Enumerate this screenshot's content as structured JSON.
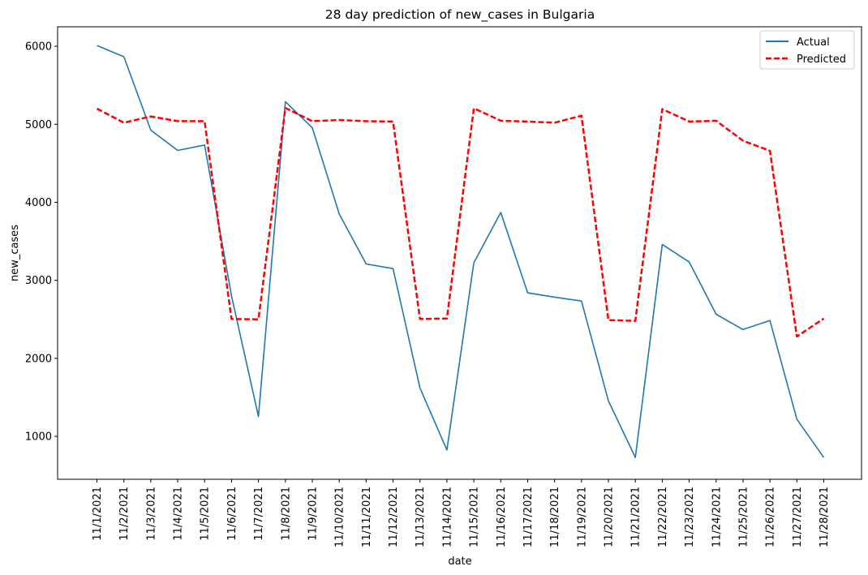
{
  "chart_data": {
    "type": "line",
    "title": "28 day prediction of new_cases in Bulgaria",
    "xlabel": "date",
    "ylabel": "new_cases",
    "ylim": [
      450,
      6250
    ],
    "yticks": [
      1000,
      2000,
      3000,
      4000,
      5000,
      6000
    ],
    "grid": false,
    "legend_position": "top-right",
    "categories": [
      "11/1/2021",
      "11/2/2021",
      "11/3/2021",
      "11/4/2021",
      "11/5/2021",
      "11/6/2021",
      "11/7/2021",
      "11/8/2021",
      "11/9/2021",
      "11/10/2021",
      "11/11/2021",
      "11/12/2021",
      "11/13/2021",
      "11/14/2021",
      "11/15/2021",
      "11/16/2021",
      "11/17/2021",
      "11/18/2021",
      "11/19/2021",
      "11/20/2021",
      "11/21/2021",
      "11/22/2021",
      "11/23/2021",
      "11/24/2021",
      "11/25/2021",
      "11/26/2021",
      "11/27/2021",
      "11/28/2021"
    ],
    "series": [
      {
        "name": "Actual",
        "color": "#1f77b4",
        "style": "solid",
        "values": [
          6010,
          5865,
          4925,
          4665,
          4735,
          2800,
          1255,
          5290,
          4955,
          3850,
          3210,
          3150,
          1620,
          825,
          3225,
          3870,
          2840,
          2785,
          2735,
          1455,
          730,
          3460,
          3235,
          2565,
          2370,
          2485,
          1220,
          730
        ]
      },
      {
        "name": "Predicted",
        "color": "#ff0000",
        "style": "dashed",
        "values": [
          5200,
          5020,
          5100,
          5040,
          5040,
          2505,
          2500,
          5210,
          5040,
          5055,
          5040,
          5035,
          2505,
          2510,
          5205,
          5045,
          5035,
          5020,
          5110,
          2490,
          2480,
          5195,
          5035,
          5045,
          4790,
          4660,
          2280,
          2510
        ]
      }
    ]
  }
}
